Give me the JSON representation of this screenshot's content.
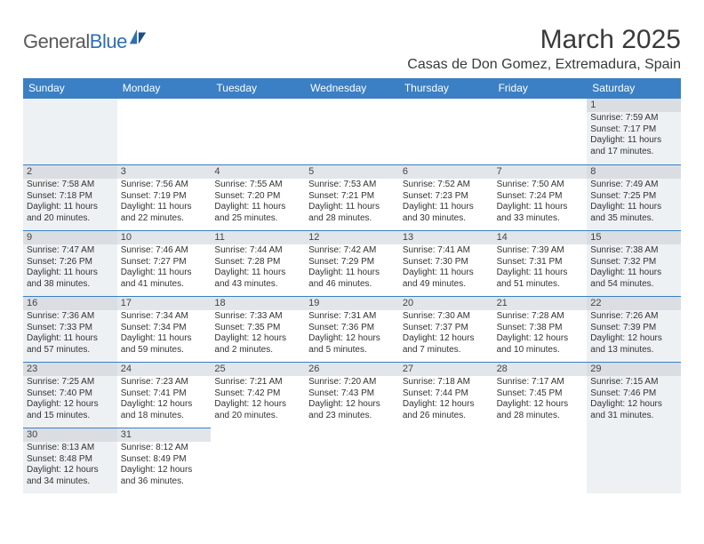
{
  "logo": {
    "text_a": "General",
    "text_b": "Blue"
  },
  "title": "March 2025",
  "location": "Casas de Don Gomez, Extremadura, Spain",
  "dow_bg": "#3b7fc4",
  "dow": [
    "Sunday",
    "Monday",
    "Tuesday",
    "Wednesday",
    "Thursday",
    "Friday",
    "Saturday"
  ],
  "weeks": [
    [
      null,
      null,
      null,
      null,
      null,
      null,
      {
        "n": "1",
        "sr": "7:59 AM",
        "ss": "7:17 PM",
        "dl": "11 hours and 17 minutes."
      }
    ],
    [
      {
        "n": "2",
        "sr": "7:58 AM",
        "ss": "7:18 PM",
        "dl": "11 hours and 20 minutes."
      },
      {
        "n": "3",
        "sr": "7:56 AM",
        "ss": "7:19 PM",
        "dl": "11 hours and 22 minutes."
      },
      {
        "n": "4",
        "sr": "7:55 AM",
        "ss": "7:20 PM",
        "dl": "11 hours and 25 minutes."
      },
      {
        "n": "5",
        "sr": "7:53 AM",
        "ss": "7:21 PM",
        "dl": "11 hours and 28 minutes."
      },
      {
        "n": "6",
        "sr": "7:52 AM",
        "ss": "7:23 PM",
        "dl": "11 hours and 30 minutes."
      },
      {
        "n": "7",
        "sr": "7:50 AM",
        "ss": "7:24 PM",
        "dl": "11 hours and 33 minutes."
      },
      {
        "n": "8",
        "sr": "7:49 AM",
        "ss": "7:25 PM",
        "dl": "11 hours and 35 minutes."
      }
    ],
    [
      {
        "n": "9",
        "sr": "7:47 AM",
        "ss": "7:26 PM",
        "dl": "11 hours and 38 minutes."
      },
      {
        "n": "10",
        "sr": "7:46 AM",
        "ss": "7:27 PM",
        "dl": "11 hours and 41 minutes."
      },
      {
        "n": "11",
        "sr": "7:44 AM",
        "ss": "7:28 PM",
        "dl": "11 hours and 43 minutes."
      },
      {
        "n": "12",
        "sr": "7:42 AM",
        "ss": "7:29 PM",
        "dl": "11 hours and 46 minutes."
      },
      {
        "n": "13",
        "sr": "7:41 AM",
        "ss": "7:30 PM",
        "dl": "11 hours and 49 minutes."
      },
      {
        "n": "14",
        "sr": "7:39 AM",
        "ss": "7:31 PM",
        "dl": "11 hours and 51 minutes."
      },
      {
        "n": "15",
        "sr": "7:38 AM",
        "ss": "7:32 PM",
        "dl": "11 hours and 54 minutes."
      }
    ],
    [
      {
        "n": "16",
        "sr": "7:36 AM",
        "ss": "7:33 PM",
        "dl": "11 hours and 57 minutes."
      },
      {
        "n": "17",
        "sr": "7:34 AM",
        "ss": "7:34 PM",
        "dl": "11 hours and 59 minutes."
      },
      {
        "n": "18",
        "sr": "7:33 AM",
        "ss": "7:35 PM",
        "dl": "12 hours and 2 minutes."
      },
      {
        "n": "19",
        "sr": "7:31 AM",
        "ss": "7:36 PM",
        "dl": "12 hours and 5 minutes."
      },
      {
        "n": "20",
        "sr": "7:30 AM",
        "ss": "7:37 PM",
        "dl": "12 hours and 7 minutes."
      },
      {
        "n": "21",
        "sr": "7:28 AM",
        "ss": "7:38 PM",
        "dl": "12 hours and 10 minutes."
      },
      {
        "n": "22",
        "sr": "7:26 AM",
        "ss": "7:39 PM",
        "dl": "12 hours and 13 minutes."
      }
    ],
    [
      {
        "n": "23",
        "sr": "7:25 AM",
        "ss": "7:40 PM",
        "dl": "12 hours and 15 minutes."
      },
      {
        "n": "24",
        "sr": "7:23 AM",
        "ss": "7:41 PM",
        "dl": "12 hours and 18 minutes."
      },
      {
        "n": "25",
        "sr": "7:21 AM",
        "ss": "7:42 PM",
        "dl": "12 hours and 20 minutes."
      },
      {
        "n": "26",
        "sr": "7:20 AM",
        "ss": "7:43 PM",
        "dl": "12 hours and 23 minutes."
      },
      {
        "n": "27",
        "sr": "7:18 AM",
        "ss": "7:44 PM",
        "dl": "12 hours and 26 minutes."
      },
      {
        "n": "28",
        "sr": "7:17 AM",
        "ss": "7:45 PM",
        "dl": "12 hours and 28 minutes."
      },
      {
        "n": "29",
        "sr": "7:15 AM",
        "ss": "7:46 PM",
        "dl": "12 hours and 31 minutes."
      }
    ],
    [
      {
        "n": "30",
        "sr": "8:13 AM",
        "ss": "8:48 PM",
        "dl": "12 hours and 34 minutes."
      },
      {
        "n": "31",
        "sr": "8:12 AM",
        "ss": "8:49 PM",
        "dl": "12 hours and 36 minutes."
      },
      null,
      null,
      null,
      null,
      null
    ]
  ],
  "labels": {
    "sunrise": "Sunrise: ",
    "sunset": "Sunset: ",
    "daylight": "Daylight: "
  }
}
